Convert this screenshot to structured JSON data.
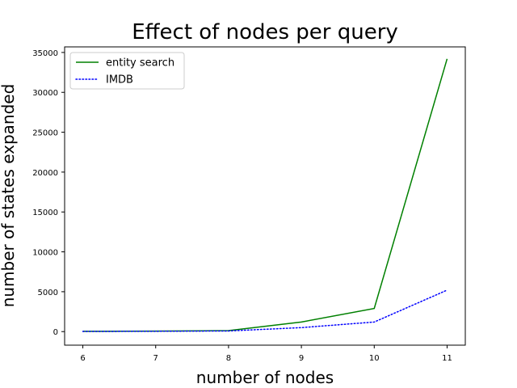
{
  "chart_data": {
    "type": "line",
    "title": "Effect of nodes per query",
    "xlabel": "number of nodes",
    "ylabel": "number of states expanded",
    "x": [
      6,
      7,
      8,
      9,
      10,
      11
    ],
    "xticks": [
      "6",
      "7",
      "8",
      "9",
      "10",
      "11"
    ],
    "yticks": [
      "0",
      "5000",
      "10000",
      "15000",
      "20000",
      "25000",
      "30000",
      "35000"
    ],
    "xlim": [
      5.75,
      11.25
    ],
    "ylim": [
      -1700,
      35700
    ],
    "grid": false,
    "legend_position": "top-left",
    "series": [
      {
        "name": "entity search",
        "values": [
          30,
          60,
          120,
          1200,
          2900,
          34200
        ],
        "color": "#008000",
        "style": "solid"
      },
      {
        "name": "IMDB",
        "values": [
          20,
          40,
          80,
          500,
          1200,
          5200
        ],
        "color": "#0000ff",
        "style": "dotted"
      }
    ]
  }
}
